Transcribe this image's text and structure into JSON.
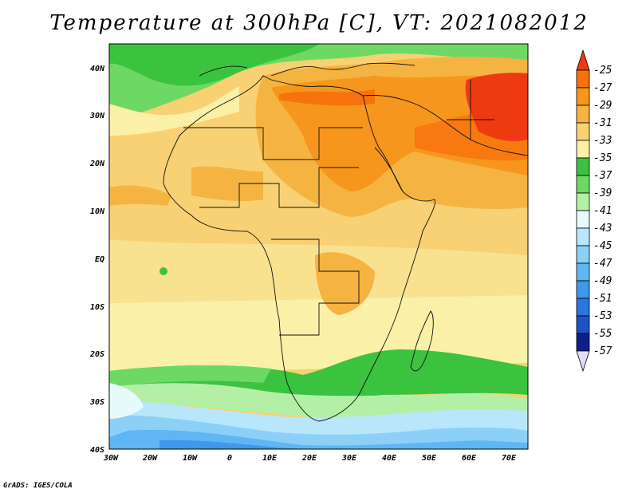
{
  "title": "Temperature at 300hPa [C], VT: 2021082012",
  "credit": "GrADS: IGES/COLA",
  "lat_labels": [
    "40N",
    "30N",
    "20N",
    "10N",
    "EQ",
    "10S",
    "20S",
    "30S",
    "40S"
  ],
  "lon_labels": [
    "30W",
    "20W",
    "10W",
    "0",
    "10E",
    "20E",
    "30E",
    "40E",
    "50E",
    "60E",
    "70E"
  ],
  "colorbar": {
    "levels": [
      "-25",
      "-27",
      "-29",
      "-31",
      "-33",
      "-35",
      "-37",
      "-39",
      "-41",
      "-43",
      "-45",
      "-47",
      "-49",
      "-51",
      "-53",
      "-55",
      "-57"
    ],
    "colors": [
      "#ee3a12",
      "#f6720c",
      "#f7961c",
      "#f5b341",
      "#f7d173",
      "#faf0a8",
      "#3bc340",
      "#6dd964",
      "#b3f0a5",
      "#e6fafc",
      "#b8e6fb",
      "#8cd0f7",
      "#5fb6f2",
      "#3f98ea",
      "#2a75e0",
      "#1c52c4",
      "#0f1f8a"
    ]
  },
  "chart_data": {
    "type": "heatmap",
    "title": "Temperature at 300hPa [C], VT: 2021082012",
    "variable": "Temperature at 300hPa",
    "unit": "C",
    "valid_time": "2021082012",
    "lon_range": [
      -30,
      75
    ],
    "lat_range": [
      -40,
      45
    ],
    "contour_levels": [
      -25,
      -27,
      -29,
      -31,
      -33,
      -35,
      -37,
      -39,
      -41,
      -43,
      -45,
      -47,
      -49,
      -51,
      -53,
      -55,
      -57
    ]
  }
}
